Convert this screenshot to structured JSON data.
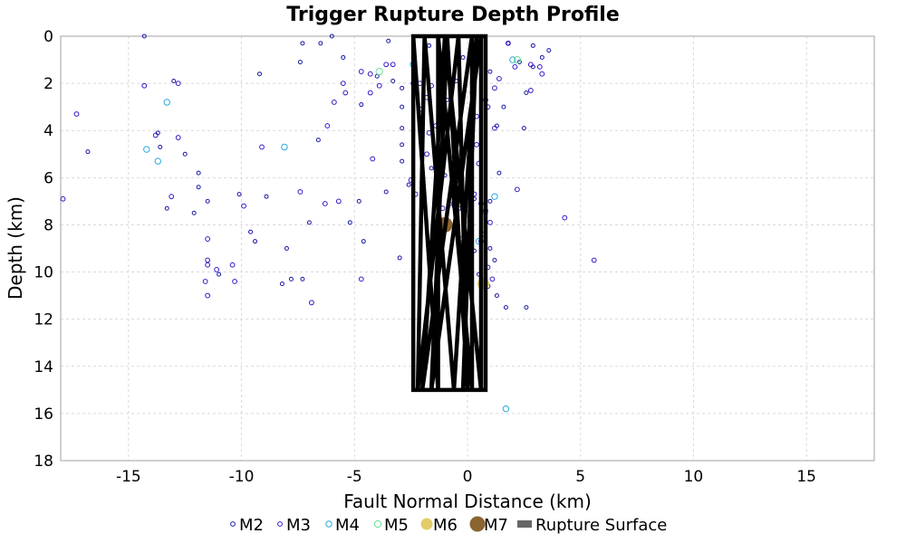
{
  "chart_data": {
    "type": "scatter",
    "title": "Trigger Rupture Depth Profile",
    "xlabel": "Fault Normal Distance (km)",
    "ylabel": "Depth (km)",
    "xlim": [
      -18,
      18
    ],
    "ylim": [
      0,
      18
    ],
    "y_inverted": true,
    "x_ticks": [
      -15,
      -10,
      -5,
      0,
      5,
      10,
      15
    ],
    "y_ticks": [
      0,
      2,
      4,
      6,
      8,
      10,
      12,
      14,
      16,
      18
    ],
    "grid": true,
    "legend_position": "bottom",
    "series": [
      {
        "name": "M2",
        "color": "#1a1aa6",
        "marker": "hollow-circle",
        "points": [
          [
            -14.3,
            0.0
          ],
          [
            -6.0,
            0.0
          ],
          [
            -7.3,
            0.3
          ],
          [
            -6.5,
            0.3
          ],
          [
            -3.5,
            0.2
          ],
          [
            -5.5,
            0.9
          ],
          [
            -7.4,
            1.1
          ],
          [
            -9.2,
            1.6
          ],
          [
            -13.0,
            1.9
          ],
          [
            -4.0,
            1.7
          ],
          [
            -1.7,
            0.4
          ],
          [
            1.8,
            0.3
          ],
          [
            2.9,
            0.4
          ],
          [
            3.6,
            0.6
          ],
          [
            3.3,
            0.9
          ],
          [
            2.3,
            1.1
          ],
          [
            2.9,
            1.3
          ],
          [
            -3.3,
            1.9
          ],
          [
            -2.9,
            2.2
          ],
          [
            -4.7,
            2.9
          ],
          [
            -2.9,
            3.0
          ],
          [
            2.6,
            2.4
          ],
          [
            1.6,
            3.0
          ],
          [
            1.3,
            3.8
          ],
          [
            2.5,
            3.9
          ],
          [
            -2.9,
            3.9
          ],
          [
            -6.6,
            4.4
          ],
          [
            -2.9,
            4.6
          ],
          [
            -2.9,
            5.3
          ],
          [
            -13.7,
            4.1
          ],
          [
            -13.6,
            4.7
          ],
          [
            -12.5,
            5.0
          ],
          [
            -11.9,
            5.8
          ],
          [
            -11.9,
            6.4
          ],
          [
            -11.5,
            7.0
          ],
          [
            -13.3,
            7.3
          ],
          [
            -12.1,
            7.5
          ],
          [
            -10.1,
            6.7
          ],
          [
            -8.9,
            6.8
          ],
          [
            -3.6,
            6.6
          ],
          [
            -4.8,
            7.0
          ],
          [
            -5.2,
            7.9
          ],
          [
            -7.0,
            7.9
          ],
          [
            -9.6,
            8.3
          ],
          [
            -9.4,
            8.7
          ],
          [
            -4.6,
            8.7
          ],
          [
            -2.6,
            6.3
          ],
          [
            -8.0,
            9.0
          ],
          [
            -3.0,
            9.4
          ],
          [
            -11.0,
            10.1
          ],
          [
            -7.8,
            10.3
          ],
          [
            -7.3,
            10.3
          ],
          [
            -8.2,
            10.5
          ],
          [
            -16.8,
            4.9
          ],
          [
            0.3,
            9.1
          ],
          [
            1.0,
            9.0
          ],
          [
            1.2,
            9.5
          ],
          [
            0.5,
            10.1
          ],
          [
            1.3,
            11.0
          ],
          [
            1.7,
            11.5
          ],
          [
            2.6,
            11.5
          ],
          [
            0.8,
            7.5
          ],
          [
            1.0,
            7.0
          ],
          [
            -0.9,
            2.7
          ],
          [
            0.2,
            2.4
          ],
          [
            1.0,
            1.5
          ],
          [
            -0.2,
            0.9
          ],
          [
            0.3,
            0.5
          ],
          [
            -0.5,
            1.9
          ],
          [
            -1.0,
            5.9
          ],
          [
            -1.6,
            5.6
          ],
          [
            -0.6,
            7.2
          ],
          [
            0.3,
            6.9
          ],
          [
            1.4,
            5.8
          ]
        ]
      },
      {
        "name": "M3",
        "color": "#3a14c8",
        "marker": "hollow-circle",
        "points": [
          [
            -17.9,
            6.9
          ],
          [
            -17.3,
            3.3
          ],
          [
            -14.3,
            2.1
          ],
          [
            -12.8,
            2.0
          ],
          [
            -12.8,
            4.3
          ],
          [
            -13.8,
            4.2
          ],
          [
            -13.1,
            6.8
          ],
          [
            -11.5,
            8.6
          ],
          [
            -11.5,
            9.5
          ],
          [
            -11.5,
            9.7
          ],
          [
            -11.6,
            10.4
          ],
          [
            -11.5,
            11.0
          ],
          [
            -11.1,
            9.9
          ],
          [
            -10.4,
            9.7
          ],
          [
            -10.3,
            10.4
          ],
          [
            -9.9,
            7.2
          ],
          [
            -9.1,
            4.7
          ],
          [
            -7.4,
            6.6
          ],
          [
            -6.9,
            11.3
          ],
          [
            -6.2,
            3.8
          ],
          [
            -6.3,
            7.1
          ],
          [
            -5.7,
            7.0
          ],
          [
            -5.5,
            2.0
          ],
          [
            -5.4,
            2.4
          ],
          [
            -5.9,
            2.8
          ],
          [
            -4.7,
            1.5
          ],
          [
            -4.3,
            1.6
          ],
          [
            -4.3,
            2.4
          ],
          [
            -3.9,
            2.1
          ],
          [
            -4.2,
            5.2
          ],
          [
            -4.7,
            10.3
          ],
          [
            -3.6,
            1.2
          ],
          [
            -3.3,
            1.2
          ],
          [
            -2.4,
            2.0
          ],
          [
            -2.1,
            2.0
          ],
          [
            -2.5,
            6.1
          ],
          [
            -2.3,
            6.7
          ],
          [
            -2.0,
            6.2
          ],
          [
            -1.6,
            2.1
          ],
          [
            -1.4,
            3.8
          ],
          [
            -1.7,
            4.1
          ],
          [
            -1.3,
            6.8
          ],
          [
            -1.1,
            7.3
          ],
          [
            -0.8,
            7.1
          ],
          [
            -0.4,
            7.3
          ],
          [
            0.0,
            6.8
          ],
          [
            0.3,
            6.7
          ],
          [
            0.6,
            7.1
          ],
          [
            0.8,
            7.4
          ],
          [
            0.7,
            8.4
          ],
          [
            0.6,
            8.7
          ],
          [
            0.9,
            9.8
          ],
          [
            0.9,
            10.6
          ],
          [
            1.1,
            10.3
          ],
          [
            1.0,
            7.9
          ],
          [
            1.2,
            3.9
          ],
          [
            1.2,
            2.2
          ],
          [
            1.4,
            1.8
          ],
          [
            1.8,
            0.3
          ],
          [
            2.1,
            1.3
          ],
          [
            2.8,
            1.2
          ],
          [
            3.2,
            1.3
          ],
          [
            3.3,
            1.6
          ],
          [
            2.8,
            2.3
          ],
          [
            2.2,
            6.5
          ],
          [
            4.3,
            7.7
          ],
          [
            5.6,
            9.5
          ],
          [
            0.4,
            4.6
          ],
          [
            -0.2,
            4.8
          ],
          [
            0.5,
            5.4
          ],
          [
            -0.7,
            5.2
          ],
          [
            -1.1,
            3.3
          ],
          [
            0.8,
            2.7
          ],
          [
            0.3,
            1.3
          ],
          [
            -0.9,
            0.9
          ],
          [
            -1.9,
            1.4
          ],
          [
            -1.8,
            2.6
          ],
          [
            0.4,
            3.4
          ],
          [
            0.9,
            3.0
          ],
          [
            -0.4,
            6.1
          ],
          [
            -1.8,
            5.0
          ],
          [
            -2.1,
            3.1
          ]
        ]
      },
      {
        "name": "M4",
        "color": "#29a9e0",
        "marker": "hollow-circle",
        "points": [
          [
            -14.2,
            4.8
          ],
          [
            -13.7,
            5.3
          ],
          [
            -13.3,
            2.8
          ],
          [
            -8.1,
            4.7
          ],
          [
            -2.4,
            1.2
          ],
          [
            -1.0,
            1.6
          ],
          [
            2.0,
            1.0
          ],
          [
            1.2,
            6.8
          ],
          [
            -0.2,
            8.6
          ],
          [
            1.7,
            15.8
          ],
          [
            0.5,
            8.7
          ]
        ]
      },
      {
        "name": "M5",
        "color": "#66dd99",
        "marker": "hollow-circle",
        "points": [
          [
            -3.9,
            1.5
          ],
          [
            2.2,
            1.0
          ]
        ]
      },
      {
        "name": "M6",
        "color": "#e3cc6a",
        "marker": "filled-circle",
        "points": [
          [
            0.7,
            10.5
          ]
        ]
      },
      {
        "name": "M7",
        "color": "#8b6430",
        "marker": "filled-circle",
        "points": [
          [
            -1.0,
            8.0
          ]
        ]
      },
      {
        "name": "Rupture Surface",
        "color": "#000000",
        "marker": "line",
        "polyline": [
          [
            -2.4,
            0.0
          ],
          [
            -2.4,
            15.0
          ],
          [
            0.8,
            15.0
          ],
          [
            0.8,
            0.0
          ],
          [
            -2.4,
            0.0
          ],
          [
            -1.3,
            15.0
          ],
          [
            -1.3,
            0.0
          ],
          [
            0.2,
            15.0
          ],
          [
            0.2,
            0.0
          ],
          [
            -2.0,
            15.0
          ],
          [
            -1.0,
            0.0
          ],
          [
            0.6,
            15.0
          ],
          [
            0.6,
            0.0
          ],
          [
            -1.6,
            15.0
          ],
          [
            -0.9,
            0.0
          ],
          [
            0.0,
            15.0
          ],
          [
            -0.4,
            0.0
          ],
          [
            -2.2,
            15.0
          ],
          [
            -1.9,
            0.0
          ],
          [
            -0.6,
            15.0
          ],
          [
            0.4,
            0.0
          ],
          [
            -0.2,
            15.0
          ]
        ]
      }
    ]
  }
}
